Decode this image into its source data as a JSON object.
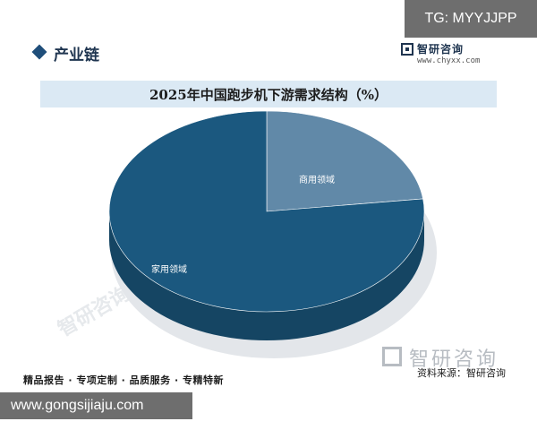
{
  "header": {
    "section_title": "产业链",
    "logo_name": "智研咨询",
    "logo_url": "www.chyxx.com"
  },
  "chart_data": {
    "type": "pie",
    "title": "2025年中国跑步机下游需求结构（%）",
    "slices": [
      {
        "label": "家用领域",
        "value": 77,
        "color": "#1b587f"
      },
      {
        "label": "商用领域",
        "value": 23,
        "color": "#6189a8"
      }
    ]
  },
  "footer": {
    "left": "精品报告 · 专项定制 · 品质服务 · 专精特新",
    "source": "资料来源：智研咨询",
    "brand": "智研咨询"
  },
  "overlays": {
    "tg": "TG: MYYJJPP",
    "url": "www.gongsijiaju.com"
  },
  "watermark": "智研咨询"
}
